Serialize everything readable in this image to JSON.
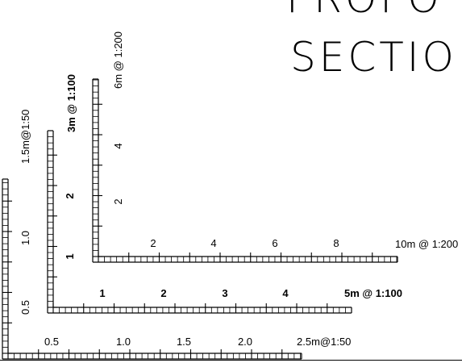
{
  "title": {
    "line1": "PROPO",
    "line2": "SECTIO"
  },
  "scales": [
    {
      "id": "s200",
      "label": "10m @ 1:200",
      "vertical_label": "6m @ 1:200",
      "x_ticks": [
        "2",
        "4",
        "6",
        "8"
      ],
      "y_ticks": [
        "2",
        "4"
      ],
      "bold": false
    },
    {
      "id": "s100",
      "label": "5m @ 1:100",
      "vertical_label": "3m @ 1:100",
      "x_ticks": [
        "1",
        "2",
        "3",
        "4"
      ],
      "y_ticks": [
        "1",
        "2"
      ],
      "bold": true
    },
    {
      "id": "s50",
      "label": "2.5m@1:50",
      "vertical_label": "1.5m@1:50",
      "x_ticks": [
        "0.5",
        "1.0",
        "1.5",
        "2.0"
      ],
      "y_ticks": [
        "0.5",
        "1.0"
      ],
      "bold": false
    }
  ]
}
